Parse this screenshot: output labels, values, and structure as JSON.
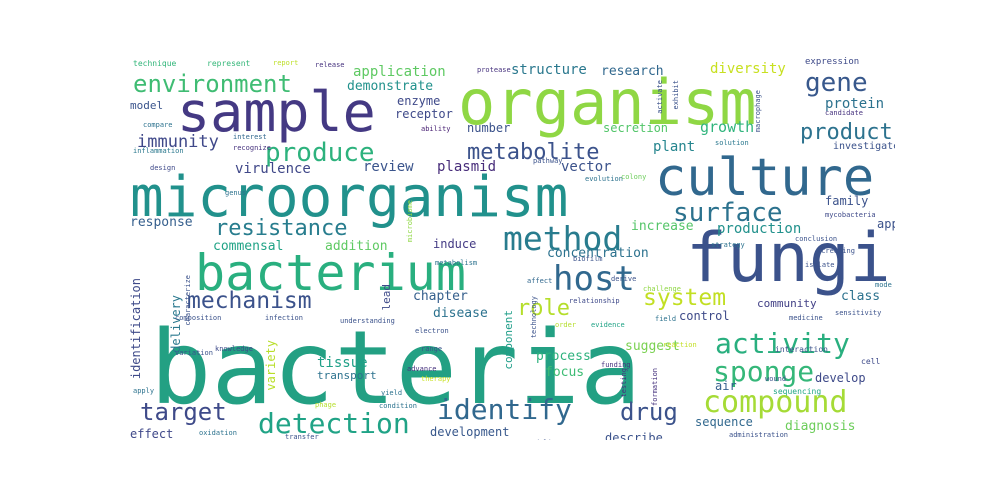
{
  "words": [
    {
      "text": "bacteria",
      "color": "#23a083"
    },
    {
      "text": "microorganism",
      "color": "#21918c"
    },
    {
      "text": "organism",
      "color": "#8fd744"
    },
    {
      "text": "sample",
      "color": "#443983"
    },
    {
      "text": "culture",
      "color": "#31688e"
    },
    {
      "text": "fungi",
      "color": "#3b528b"
    },
    {
      "text": "bacterium",
      "color": "#29af7f"
    },
    {
      "text": "host",
      "color": "#31688e"
    },
    {
      "text": "method",
      "color": "#287c8e"
    },
    {
      "text": "compound",
      "color": "#a5db36"
    },
    {
      "text": "sponge",
      "color": "#35b779"
    },
    {
      "text": "activity",
      "color": "#29af7f"
    },
    {
      "text": "detection",
      "color": "#20a386"
    },
    {
      "text": "identify",
      "color": "#31688e"
    },
    {
      "text": "target",
      "color": "#3e4a89"
    },
    {
      "text": "drug",
      "color": "#3b528b"
    },
    {
      "text": "mechanism",
      "color": "#3b528b"
    },
    {
      "text": "resistance",
      "color": "#287d8e"
    },
    {
      "text": "produce",
      "color": "#2db27d"
    },
    {
      "text": "environment",
      "color": "#3fbc73"
    },
    {
      "text": "gene",
      "color": "#38588c"
    },
    {
      "text": "product",
      "color": "#2c728e"
    },
    {
      "text": "surface",
      "color": "#2c728e"
    },
    {
      "text": "system",
      "color": "#c2df23"
    },
    {
      "text": "role",
      "color": "#b5de2b"
    },
    {
      "text": "metabolite",
      "color": "#3b528b"
    },
    {
      "text": "immunity",
      "color": "#3f4889"
    },
    {
      "text": "protein",
      "color": "#2c728e"
    },
    {
      "text": "application",
      "color": "#5ec962"
    },
    {
      "text": "structure",
      "color": "#2a788e"
    },
    {
      "text": "research",
      "color": "#31688e"
    },
    {
      "text": "diversity",
      "color": "#c8e020"
    },
    {
      "text": "demonstrate",
      "color": "#21918c"
    },
    {
      "text": "enzyme",
      "color": "#3e4989"
    },
    {
      "text": "receptor",
      "color": "#3e4989"
    },
    {
      "text": "number",
      "color": "#3b528b"
    },
    {
      "text": "secretion",
      "color": "#52c569"
    },
    {
      "text": "growth",
      "color": "#2fb47c"
    },
    {
      "text": "plant",
      "color": "#25858e"
    },
    {
      "text": "vector",
      "color": "#3b528b"
    },
    {
      "text": "plasmid",
      "color": "#472c7a"
    },
    {
      "text": "review",
      "color": "#3a548c"
    },
    {
      "text": "virulence",
      "color": "#3f4788"
    },
    {
      "text": "response",
      "color": "#355f8d"
    },
    {
      "text": "commensal",
      "color": "#20a386"
    },
    {
      "text": "addition",
      "color": "#5ec962"
    },
    {
      "text": "induce",
      "color": "#443b84"
    },
    {
      "text": "concentration",
      "color": "#2c728e"
    },
    {
      "text": "increase",
      "color": "#54c568"
    },
    {
      "text": "production",
      "color": "#21918c"
    },
    {
      "text": "family",
      "color": "#3b528b"
    },
    {
      "text": "approach",
      "color": "#3b528b"
    },
    {
      "text": "class",
      "color": "#2c728e"
    },
    {
      "text": "community",
      "color": "#424086"
    },
    {
      "text": "control",
      "color": "#3e4a89"
    },
    {
      "text": "chapter",
      "color": "#355f8d"
    },
    {
      "text": "disease",
      "color": "#2c728e"
    },
    {
      "text": "process",
      "color": "#2db27d"
    },
    {
      "text": "focus",
      "color": "#3dbc74"
    },
    {
      "text": "suggest",
      "color": "#7ad151"
    },
    {
      "text": "tissue",
      "color": "#1fa088"
    },
    {
      "text": "transport",
      "color": "#2c728e"
    },
    {
      "text": "variety",
      "color": "#b8de29"
    },
    {
      "text": "air",
      "color": "#355f8d"
    },
    {
      "text": "develop",
      "color": "#3e4a89"
    },
    {
      "text": "sequencing",
      "color": "#22a785"
    },
    {
      "text": "sequence",
      "color": "#31688e"
    },
    {
      "text": "diagnosis",
      "color": "#6ccd5a"
    },
    {
      "text": "describe",
      "color": "#3b528b"
    },
    {
      "text": "development",
      "color": "#38588c"
    },
    {
      "text": "effect",
      "color": "#3f4889"
    },
    {
      "text": "delivery",
      "color": "#2a788e"
    },
    {
      "text": "identification",
      "color": "#3e4a89"
    },
    {
      "text": "component",
      "color": "#1f9e89"
    },
    {
      "text": "lead",
      "color": "#3e4a89"
    },
    {
      "text": "model",
      "color": "#3a548c"
    },
    {
      "text": "technique",
      "color": "#32b67a"
    },
    {
      "text": "represent",
      "color": "#35b779"
    },
    {
      "text": "report",
      "color": "#bddf26"
    },
    {
      "text": "release",
      "color": "#46327e"
    },
    {
      "text": "protease",
      "color": "#46327e"
    },
    {
      "text": "expression",
      "color": "#3e4a89"
    },
    {
      "text": "compare",
      "color": "#2c728e"
    },
    {
      "text": "ability",
      "color": "#482173"
    },
    {
      "text": "interest",
      "color": "#31688e"
    },
    {
      "text": "recognize",
      "color": "#46327e"
    },
    {
      "text": "inflammation",
      "color": "#2a788e"
    },
    {
      "text": "design",
      "color": "#3e4989"
    },
    {
      "text": "investigate",
      "color": "#3b528b"
    },
    {
      "text": "candidate",
      "color": "#46327e"
    },
    {
      "text": "evolution",
      "color": "#2c728e"
    },
    {
      "text": "solution",
      "color": "#2a788e"
    },
    {
      "text": "colony",
      "color": "#6ccd5a"
    },
    {
      "text": "mycobacteria",
      "color": "#3e4989"
    },
    {
      "text": "strategy",
      "color": "#2c728e"
    },
    {
      "text": "conclusion",
      "color": "#3b528b"
    },
    {
      "text": "screening",
      "color": "#3b528b"
    },
    {
      "text": "metabolism",
      "color": "#2c728e"
    },
    {
      "text": "relationship",
      "color": "#3e4989"
    },
    {
      "text": "challenge",
      "color": "#8fd744"
    },
    {
      "text": "derive",
      "color": "#3b528b"
    },
    {
      "text": "affect",
      "color": "#31688e"
    },
    {
      "text": "evidence",
      "color": "#20a386"
    },
    {
      "text": "order",
      "color": "#b5de2b"
    },
    {
      "text": "electron",
      "color": "#3b528b"
    },
    {
      "text": "understanding",
      "color": "#3b528b"
    },
    {
      "text": "infection",
      "color": "#3b528b"
    },
    {
      "text": "composition",
      "color": "#3b528b"
    },
    {
      "text": "variation",
      "color": "#3b528b"
    },
    {
      "text": "knowledge",
      "color": "#3e4a89"
    },
    {
      "text": "range",
      "color": "#3b528b"
    },
    {
      "text": "advance",
      "color": "#46327e"
    },
    {
      "text": "therapy",
      "color": "#c8e020"
    },
    {
      "text": "interaction",
      "color": "#3b528b"
    },
    {
      "text": "sensitivity",
      "color": "#3b528b"
    },
    {
      "text": "medicine",
      "color": "#3b528b"
    },
    {
      "text": "cell",
      "color": "#3e4a89"
    },
    {
      "text": "yield",
      "color": "#2c728e"
    },
    {
      "text": "condition",
      "color": "#2c728e"
    },
    {
      "text": "phage",
      "color": "#b5de2b"
    },
    {
      "text": "administration",
      "color": "#3b528b"
    },
    {
      "text": "associate",
      "color": "#c2df23"
    },
    {
      "text": "examine",
      "color": "#3b528b"
    },
    {
      "text": "transfer",
      "color": "#3b528b"
    },
    {
      "text": "overcome",
      "color": "#3e4989"
    },
    {
      "text": "deliver",
      "color": "#3b528b"
    },
    {
      "text": "oxidation",
      "color": "#2c728e"
    },
    {
      "text": "apply",
      "color": "#2c728e"
    },
    {
      "text": "funding",
      "color": "#46327e"
    },
    {
      "text": "genus",
      "color": "#2c728e"
    },
    {
      "text": "field",
      "color": "#2c728e"
    },
    {
      "text": "wound",
      "color": "#3b528b"
    },
    {
      "text": "activate",
      "color": "#3b528b"
    },
    {
      "text": "macrophage",
      "color": "#3b528b"
    },
    {
      "text": "exhibit",
      "color": "#3b528b"
    },
    {
      "text": "characterize",
      "color": "#3b528b"
    },
    {
      "text": "microbiome",
      "color": "#8fd744"
    },
    {
      "text": "technology",
      "color": "#3b528b"
    },
    {
      "text": "testing",
      "color": "#46327e"
    },
    {
      "text": "formation",
      "color": "#46327e"
    },
    {
      "text": "biofilm",
      "color": "#3b528b"
    },
    {
      "text": "isolate",
      "color": "#3b528b"
    },
    {
      "text": "reaction",
      "color": "#c2df23"
    },
    {
      "text": "mode",
      "color": "#2c728e"
    },
    {
      "text": "pathway",
      "color": "#3b528b"
    }
  ]
}
